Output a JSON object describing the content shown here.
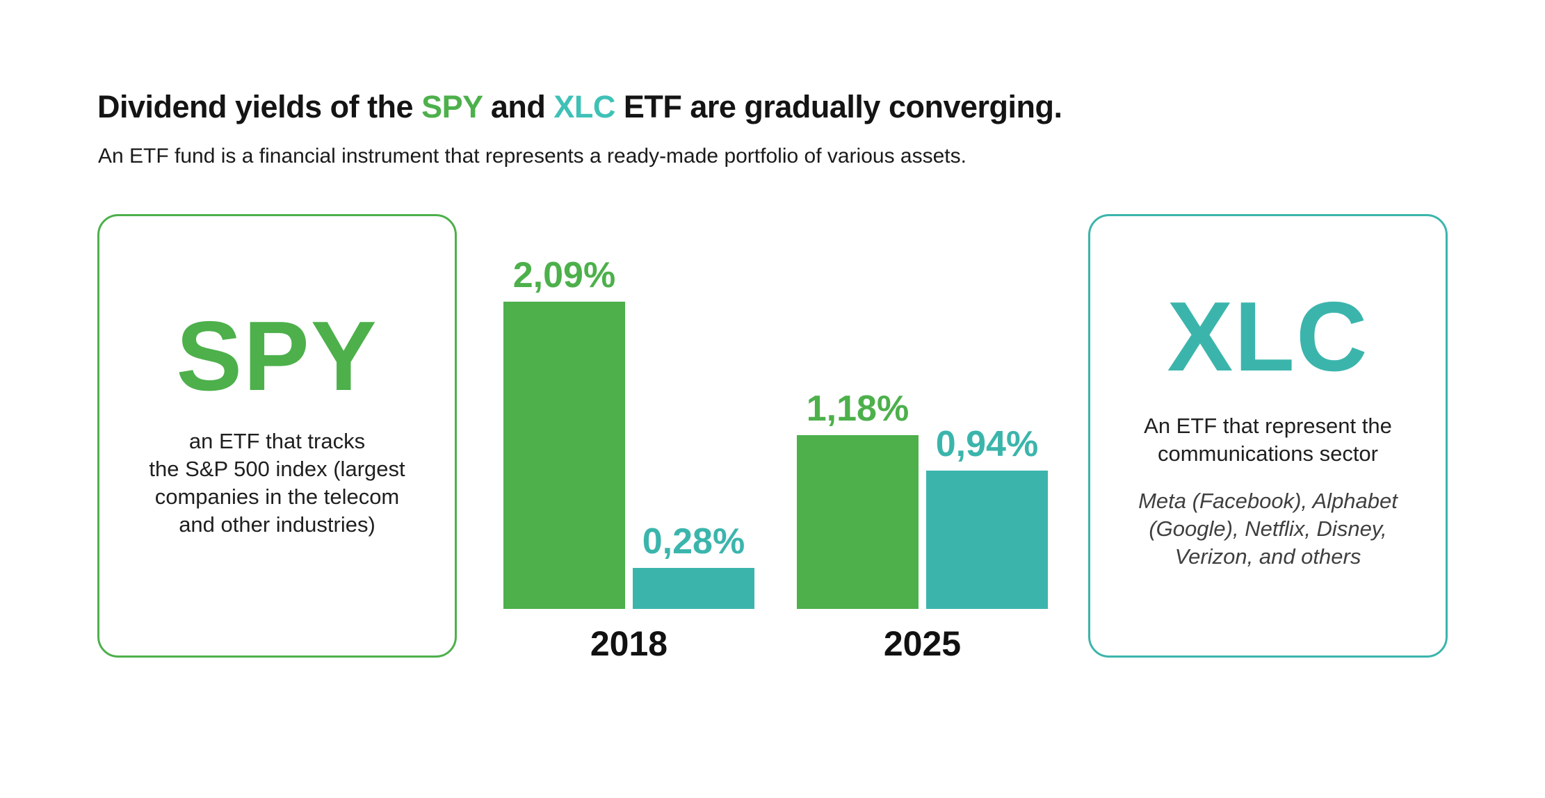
{
  "title": {
    "prefix": "Dividend yields of the ",
    "spy_word": "SPY",
    "mid": " and ",
    "xlc_word": "XLC",
    "suffix": " ETF are gradually converging."
  },
  "subtitle": "An ETF fund is a financial instrument that represents a ready-made portfolio of various assets.",
  "spy_card": {
    "ticker": "SPY",
    "description_lines": [
      "an ETF that tracks",
      "the S&P 500 index (largest",
      "companies in the telecom",
      "and other industries)"
    ]
  },
  "xlc_card": {
    "ticker": "XLC",
    "description_lines": [
      "An ETF that represent the",
      "communications sector"
    ],
    "holdings_lines": [
      "Meta (Facebook), Alphabet",
      "(Google), Netflix, Disney,",
      "Verizon, and others"
    ]
  },
  "chart_data": {
    "type": "bar",
    "title": "Dividend yields of the SPY and XLC ETF are gradually converging.",
    "categories": [
      "2018",
      "2025"
    ],
    "series": [
      {
        "name": "SPY",
        "color_key": "green",
        "values": [
          2.09,
          1.18
        ],
        "labels": [
          "2,09%",
          "1,18%"
        ]
      },
      {
        "name": "XLC",
        "color_key": "teal",
        "values": [
          0.28,
          0.94
        ],
        "labels": [
          "0,28%",
          "0,94%"
        ]
      }
    ],
    "unit": "%",
    "decimal_separator": ",",
    "ylim": [
      0,
      2.09
    ],
    "value_label_position": "above-bar",
    "grid": false,
    "legend": false,
    "axes_shown": false
  },
  "colors": {
    "green": "#4DB04B",
    "teal": "#3BB5AC",
    "teal_bright": "#3FC1B7",
    "title_text": "#141414",
    "subtitle_text": "#1A1A1A",
    "body_text": "#1F1F1F",
    "holdings_text": "#3F3F3F",
    "year_text": "#111111",
    "background": "#FFFFFF"
  }
}
